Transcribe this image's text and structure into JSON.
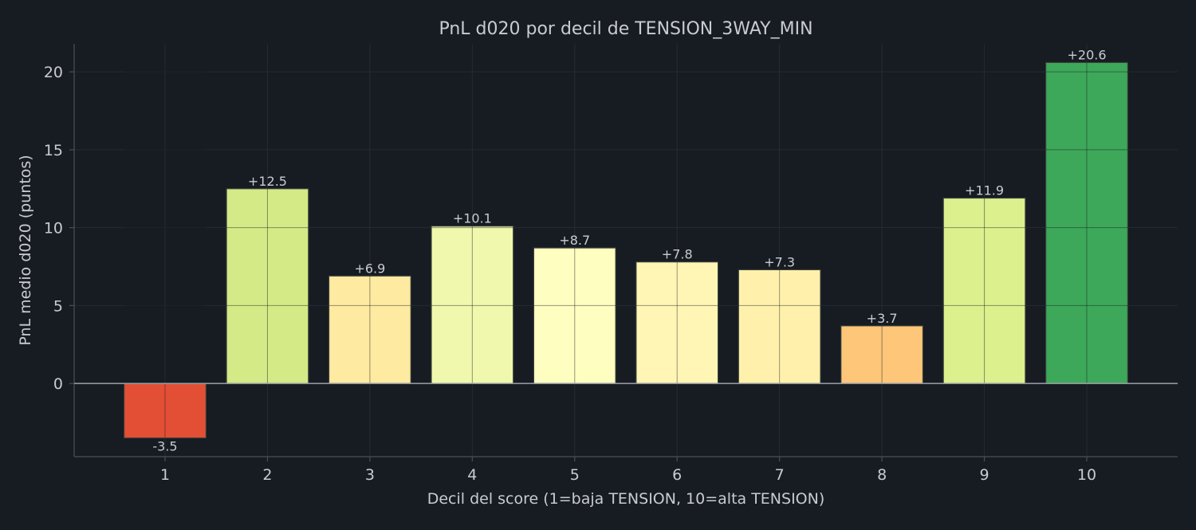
{
  "chart_data": {
    "type": "bar",
    "title": "PnL d020 por decil de TENSION_3WAY_MIN",
    "xlabel": "Decil del score (1=baja TENSION, 10=alta TENSION)",
    "ylabel": "PnL medio d020 (puntos)",
    "categories": [
      "1",
      "2",
      "3",
      "4",
      "5",
      "6",
      "7",
      "8",
      "9",
      "10"
    ],
    "values": [
      -3.5,
      12.5,
      6.9,
      10.1,
      8.7,
      7.8,
      7.3,
      3.7,
      11.9,
      20.6
    ],
    "value_labels": [
      "-3.5",
      "+12.5",
      "+6.9",
      "+10.1",
      "+8.7",
      "+7.8",
      "+7.3",
      "+3.7",
      "+11.9",
      "+20.6"
    ],
    "bar_colors": [
      "#e34f35",
      "#d3ea86",
      "#feeaa0",
      "#f0f8ae",
      "#fefec0",
      "#fff5b5",
      "#fff1ab",
      "#fec679",
      "#dcf08e",
      "#3ea85a"
    ],
    "ylim": [
      -4.7,
      21.8
    ],
    "yticks": [
      0,
      5,
      10,
      15,
      20
    ],
    "ytick_labels": [
      "0",
      "5",
      "10",
      "15",
      "20"
    ],
    "grid": true
  },
  "colors": {
    "background": "#171b22",
    "text": "#c8ccd2",
    "axis": "#4a4f57",
    "zero_line": "#9ca1a8",
    "grid": "#262b33",
    "bar_edge": "#3a3f38"
  }
}
